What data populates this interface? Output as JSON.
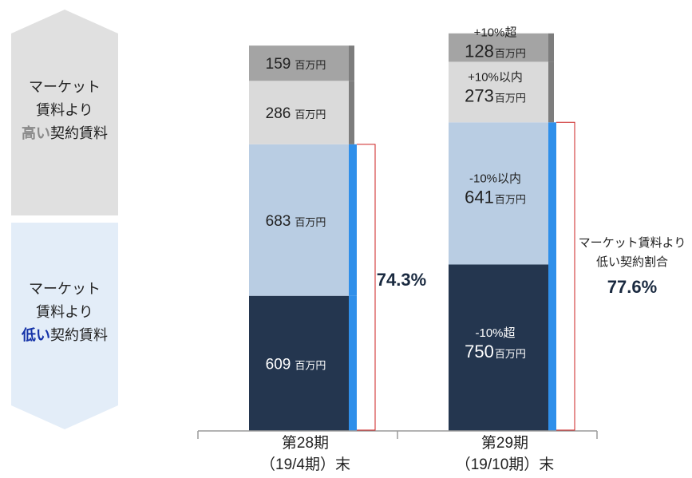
{
  "chart_data": {
    "type": "bar",
    "stacked": true,
    "categories": [
      [
        "第28期",
        "（19/4期）末"
      ],
      [
        "第29期",
        "（19/10期）末"
      ]
    ],
    "unit": "百万円",
    "series": [
      {
        "name": "-10%超",
        "color": "#24364f",
        "text_color": "#ffffff",
        "values": [
          609,
          750
        ]
      },
      {
        "name": "-10%以内",
        "color": "#b9cde3",
        "text_color": "#222222",
        "values": [
          683,
          641
        ]
      },
      {
        "name": "+10%以内",
        "color": "#dadada",
        "text_color": "#222222",
        "values": [
          286,
          273
        ]
      },
      {
        "name": "+10%超",
        "color": "#a4a4a4",
        "text_color": "#222222",
        "values": [
          159,
          128
        ]
      }
    ],
    "segment_labels_shown": [
      [
        false,
        false,
        false,
        false
      ],
      [
        true,
        true,
        true,
        true
      ]
    ],
    "low_ratio": {
      "values": [
        "74.3%",
        "77.6%"
      ],
      "caption": [
        "マーケット賃料より",
        "低い契約割合"
      ],
      "color": "#1a2a40",
      "bracket_color": "#cc2222",
      "indicator_color": "#2f8fea"
    }
  },
  "legend": {
    "high": {
      "lines": [
        "マーケット",
        "賃料より"
      ],
      "emphasis": "高い",
      "suffix": "契約賃料",
      "fill": "#e0e0e0",
      "emphasis_color": "#8a8a8a"
    },
    "low": {
      "lines": [
        "マーケット",
        "賃料より"
      ],
      "emphasis": "低い",
      "suffix": "契約賃料",
      "fill": "#e3edf8",
      "emphasis_color": "#1533a8"
    }
  }
}
